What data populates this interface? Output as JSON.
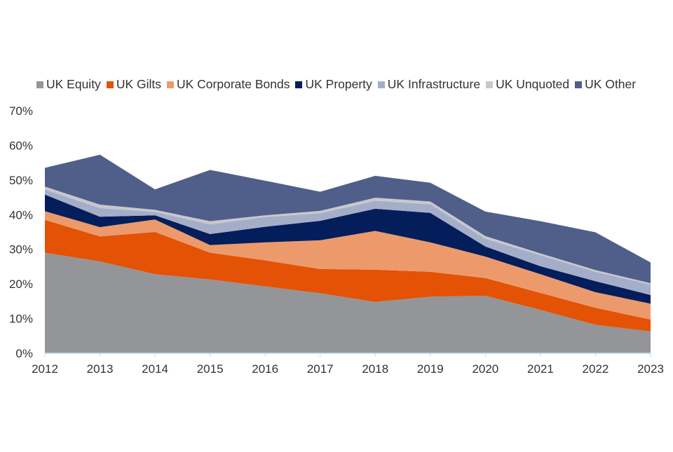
{
  "chart_data": {
    "type": "area",
    "stacked": true,
    "x": [
      "2012",
      "2013",
      "2014",
      "2015",
      "2016",
      "2017",
      "2018",
      "2019",
      "2020",
      "2021",
      "2022",
      "2023"
    ],
    "ylim": [
      0,
      70
    ],
    "yticks": [
      "0%",
      "10%",
      "20%",
      "30%",
      "40%",
      "50%",
      "60%",
      "70%"
    ],
    "legend_position": "top",
    "grid": false,
    "series": [
      {
        "name": "UK Equity",
        "color": "#939598",
        "values": [
          29,
          26.5,
          22.8,
          21.3,
          19.3,
          17.3,
          14.8,
          16.3,
          16.6,
          12.5,
          8.2,
          6.3
        ]
      },
      {
        "name": "UK Gilts",
        "color": "#e35205",
        "values": [
          9.5,
          7.2,
          12.2,
          7.7,
          7.5,
          7,
          9.3,
          7.2,
          5.1,
          4.9,
          4.9,
          3.4
        ]
      },
      {
        "name": "UK Corporate Bonds",
        "color": "#ec9a6b",
        "values": [
          2.5,
          2.7,
          3.6,
          2.2,
          5.2,
          8.3,
          11.2,
          8.5,
          6.2,
          5.4,
          4.5,
          4.6
        ]
      },
      {
        "name": "UK Property",
        "color": "#041e5b",
        "values": [
          4.8,
          3,
          1.2,
          3.2,
          4.5,
          5.6,
          6.4,
          8.5,
          2.9,
          2.3,
          3.2,
          2.5
        ]
      },
      {
        "name": "UK Infrastructure",
        "color": "#a5aec8",
        "values": [
          1.5,
          2.5,
          1,
          2.8,
          2.8,
          2.2,
          2.3,
          2.5,
          2.2,
          3.2,
          2.7,
          3
        ]
      },
      {
        "name": "UK Unquoted",
        "color": "#c8c8cc",
        "values": [
          0.8,
          1,
          0.6,
          0.9,
          0.5,
          0.7,
          0.9,
          0.8,
          0.8,
          0.5,
          0.5,
          0.4
        ]
      },
      {
        "name": "UK Other",
        "color": "#4f5f8a",
        "values": [
          5.4,
          14.4,
          5.9,
          14.8,
          10,
          5.5,
          6.3,
          5.4,
          7.1,
          9.3,
          10.9,
          6
        ]
      }
    ]
  }
}
